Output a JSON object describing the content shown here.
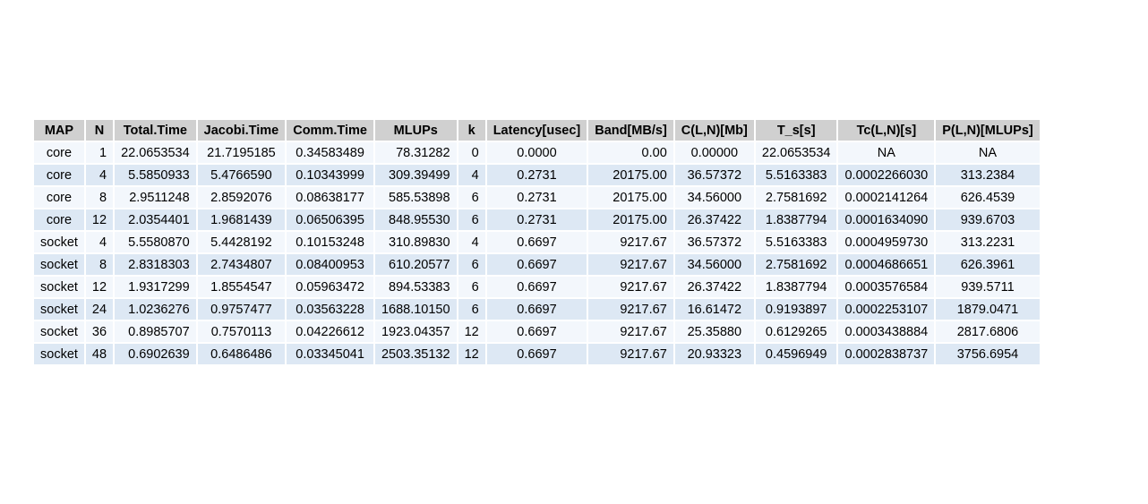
{
  "table": {
    "columns": [
      "MAP",
      "N",
      "Total.Time",
      "Jacobi.Time",
      "Comm.Time",
      "MLUPs",
      "k",
      "Latency[usec]",
      "Band[MB/s]",
      "C(L,N)[Mb]",
      "T_s[s]",
      "Tc(L,N)[s]",
      "P(L,N)[MLUPs]"
    ],
    "rows": [
      [
        "core",
        "1",
        "22.0653534",
        "21.7195185",
        "0.34583489",
        "78.31282",
        "0",
        "0.0000",
        "0.00",
        "0.00000",
        "22.0653534",
        "NA",
        "NA"
      ],
      [
        "core",
        "4",
        "5.5850933",
        "5.4766590",
        "0.10343999",
        "309.39499",
        "4",
        "0.2731",
        "20175.00",
        "36.57372",
        "5.5163383",
        "0.0002266030",
        "313.2384"
      ],
      [
        "core",
        "8",
        "2.9511248",
        "2.8592076",
        "0.08638177",
        "585.53898",
        "6",
        "0.2731",
        "20175.00",
        "34.56000",
        "2.7581692",
        "0.0002141264",
        "626.4539"
      ],
      [
        "core",
        "12",
        "2.0354401",
        "1.9681439",
        "0.06506395",
        "848.95530",
        "6",
        "0.2731",
        "20175.00",
        "26.37422",
        "1.8387794",
        "0.0001634090",
        "939.6703"
      ],
      [
        "socket",
        "4",
        "5.5580870",
        "5.4428192",
        "0.10153248",
        "310.89830",
        "4",
        "0.6697",
        "9217.67",
        "36.57372",
        "5.5163383",
        "0.0004959730",
        "313.2231"
      ],
      [
        "socket",
        "8",
        "2.8318303",
        "2.7434807",
        "0.08400953",
        "610.20577",
        "6",
        "0.6697",
        "9217.67",
        "34.56000",
        "2.7581692",
        "0.0004686651",
        "626.3961"
      ],
      [
        "socket",
        "12",
        "1.9317299",
        "1.8554547",
        "0.05963472",
        "894.53383",
        "6",
        "0.6697",
        "9217.67",
        "26.37422",
        "1.8387794",
        "0.0003576584",
        "939.5711"
      ],
      [
        "socket",
        "24",
        "1.0236276",
        "0.9757477",
        "0.03563228",
        "1688.10150",
        "6",
        "0.6697",
        "9217.67",
        "16.61472",
        "0.9193897",
        "0.0002253107",
        "1879.0471"
      ],
      [
        "socket",
        "36",
        "0.8985707",
        "0.7570113",
        "0.04226612",
        "1923.04357",
        "12",
        "0.6697",
        "9217.67",
        "25.35880",
        "0.6129265",
        "0.0003438884",
        "2817.6806"
      ],
      [
        "socket",
        "48",
        "0.6902639",
        "0.6486486",
        "0.03345041",
        "2503.35132",
        "12",
        "0.6697",
        "9217.67",
        "20.93323",
        "0.4596949",
        "0.0002838737",
        "3756.6954"
      ]
    ]
  }
}
